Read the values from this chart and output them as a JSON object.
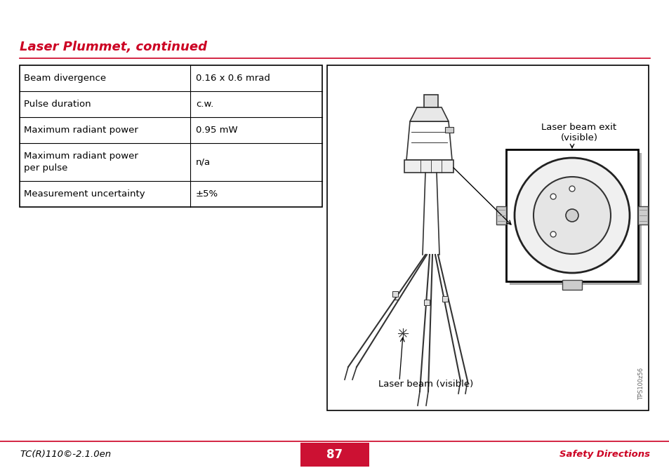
{
  "page_bg": "#ffffff",
  "title": "Laser Plummet, continued",
  "title_color": "#cc0022",
  "separator_color": "#cc0022",
  "table_rows": [
    [
      "Beam divergence",
      "0.16 x 0.6 mrad"
    ],
    [
      "Pulse duration",
      "c.w."
    ],
    [
      "Maximum radiant power",
      "0.95 mW"
    ],
    [
      "Maximum radiant power\nper pulse",
      "n/a"
    ],
    [
      "Measurement uncertainty",
      "±5%"
    ]
  ],
  "image_label_exit": "Laser beam exit\n(visible)",
  "image_label_beam": "Laser beam (visible)",
  "image_watermark": "TPS100z56",
  "footer_left": "TC(R)110©-2.1.0en",
  "footer_center": "87",
  "footer_right": "Safety Directions",
  "footer_bg": "#cc1133",
  "footer_text_color": "#cc0022",
  "footer_center_color": "#ffffff",
  "table_border_color": "#000000",
  "table_text_color": "#000000",
  "table_font_size": 9.5,
  "title_font_size": 13,
  "footer_font_size": 9.5
}
